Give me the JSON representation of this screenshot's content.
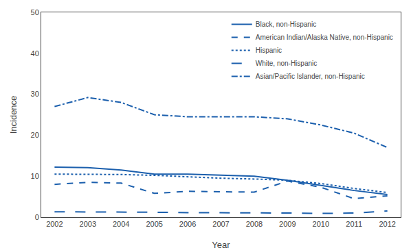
{
  "chart_data": {
    "type": "line",
    "x": [
      2002,
      2003,
      2004,
      2005,
      2006,
      2007,
      2008,
      2009,
      2010,
      2011,
      2012
    ],
    "series": [
      {
        "name": "Black, non-Hispanic",
        "line_style": "solid",
        "values": [
          12.2,
          12.1,
          11.5,
          10.5,
          10.5,
          10.3,
          10.0,
          9.0,
          7.8,
          6.5,
          5.5
        ]
      },
      {
        "name": "American Indian/Alaska Native, non-Hispanic",
        "line_style": "dash",
        "values": [
          8.0,
          8.5,
          8.3,
          5.8,
          6.3,
          6.2,
          6.1,
          8.8,
          7.3,
          4.5,
          5.2
        ]
      },
      {
        "name": "Hispanic",
        "line_style": "dot",
        "values": [
          10.5,
          10.5,
          10.4,
          10.2,
          9.8,
          9.5,
          9.3,
          9.0,
          8.2,
          7.0,
          6.0
        ]
      },
      {
        "name": "White, non-Hispanic",
        "line_style": "longdash",
        "values": [
          1.3,
          1.3,
          1.3,
          1.2,
          1.1,
          1.1,
          1.0,
          1.0,
          0.9,
          1.0,
          1.5
        ]
      },
      {
        "name": "Asian/Pacific Islander, non-Hispanic",
        "line_style": "dashdot",
        "values": [
          27.0,
          29.2,
          28.0,
          25.0,
          24.5,
          24.5,
          24.5,
          24.0,
          22.5,
          20.5,
          17.0
        ]
      }
    ],
    "color": "#1b5fad",
    "x_label": "Year",
    "y_label": "Incidence",
    "xlim": [
      2001.6,
      2012.4
    ],
    "xticks": [
      2002,
      2003,
      2004,
      2005,
      2006,
      2007,
      2008,
      2009,
      2010,
      2011,
      2012
    ],
    "ylim": [
      0,
      50
    ],
    "yticks": [
      0,
      10,
      20,
      30,
      40,
      50
    ],
    "grid": false,
    "legend": "upper right"
  }
}
